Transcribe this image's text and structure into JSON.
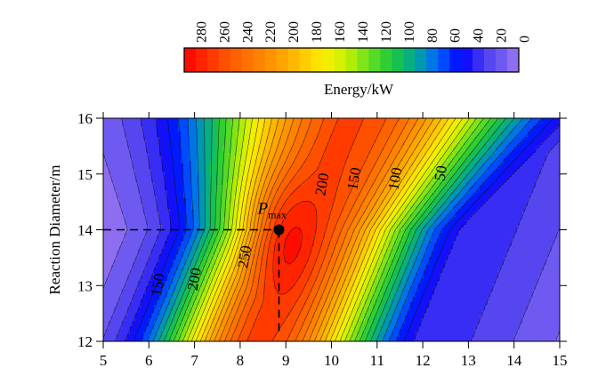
{
  "chart_data": {
    "type": "heatmap",
    "subtype": "filled-contour",
    "title": "",
    "xlabel": "",
    "ylabel": "Reaction Diameter/m",
    "xlim": [
      5,
      15
    ],
    "ylim": [
      12,
      16
    ],
    "x_ticks": [
      "5",
      "6",
      "7",
      "8",
      "9",
      "10",
      "11",
      "12",
      "13",
      "14",
      "15"
    ],
    "y_ticks": [
      "12",
      "13",
      "14",
      "15",
      "16"
    ],
    "colorbar": {
      "label": "Energy/kW",
      "range": [
        0,
        290
      ],
      "tick_labels": [
        "280",
        "260",
        "240",
        "220",
        "200",
        "180",
        "160",
        "140",
        "120",
        "100",
        "80",
        "60",
        "40",
        "20",
        "0"
      ],
      "tick_values": [
        280,
        260,
        240,
        220,
        200,
        180,
        160,
        140,
        120,
        100,
        80,
        60,
        40,
        20,
        0
      ],
      "step": 10,
      "colormap": "rainbow (red = high, violet = low)"
    },
    "contour_labels": [
      {
        "text": "150",
        "x": 6.3,
        "y": 13.0
      },
      {
        "text": "200",
        "x": 7.1,
        "y": 13.1
      },
      {
        "text": "250",
        "x": 8.2,
        "y": 13.5
      },
      {
        "text": "200",
        "x": 9.9,
        "y": 14.8
      },
      {
        "text": "150",
        "x": 10.6,
        "y": 14.9
      },
      {
        "text": "100",
        "x": 11.5,
        "y": 14.9
      },
      {
        "text": "50",
        "x": 12.5,
        "y": 15.0
      }
    ],
    "peak": {
      "label_main": "P",
      "label_sub": "max",
      "x": 8.85,
      "y": 14.0,
      "value": 290
    }
  },
  "colors": {
    "c_290": "#ff0000",
    "c_270": "#ff3000",
    "c_250": "#ff5a00",
    "c_220": "#ff8a00",
    "c_190": "#ffc000",
    "c_170": "#ffee00",
    "c_150": "#c8f000",
    "c_130": "#66e020",
    "c_110": "#1ec83c",
    "c_90": "#00a896",
    "c_70": "#0064ff",
    "c_50": "#0000ff",
    "c_30": "#4a3cf0",
    "c_10": "#7a64f0",
    "c_0": "#a078f0"
  }
}
